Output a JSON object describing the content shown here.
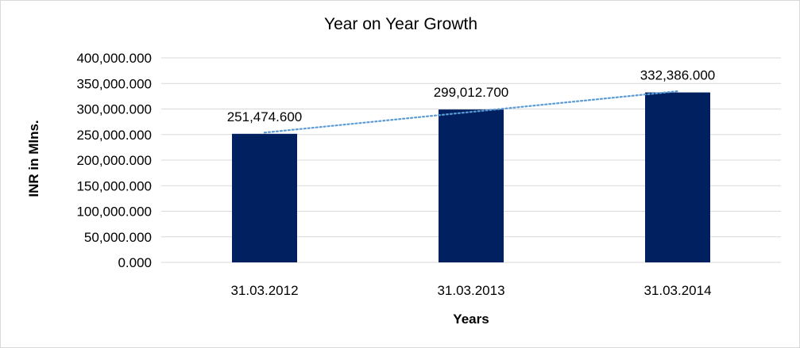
{
  "chart_data": {
    "type": "bar",
    "title": "Year on Year Growth",
    "xlabel": "Years",
    "ylabel": "INR in Mlns.",
    "categories": [
      "31.03.2012",
      "31.03.2013",
      "31.03.2014"
    ],
    "values": [
      251474.6,
      299012.7,
      332386.0
    ],
    "data_labels": [
      "251,474.600",
      "299,012.700",
      "332,386.000"
    ],
    "ylim": [
      0,
      400000
    ],
    "yticks": [
      0,
      50000,
      100000,
      150000,
      200000,
      250000,
      300000,
      350000,
      400000
    ],
    "ytick_labels": [
      "0.000",
      "50,000.000",
      "100,000.000",
      "150,000.000",
      "200,000.000",
      "250,000.000",
      "300,000.000",
      "350,000.000",
      "400,000.000"
    ],
    "grid": true,
    "trendline": "linear (dotted)",
    "legend": "none",
    "colors": {
      "bar": "#002060",
      "trendline": "#5b9bd5",
      "grid": "#d9d9d9"
    }
  }
}
